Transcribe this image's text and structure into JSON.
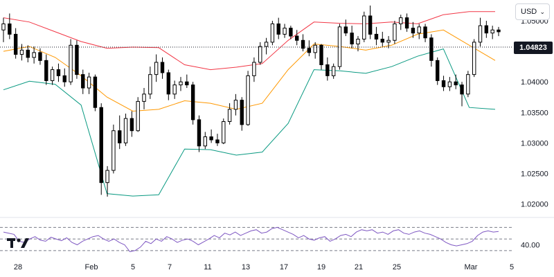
{
  "currency_selector": {
    "label": "USD",
    "chevron": "chevron-down-icon"
  },
  "last_price_label": "1.04823",
  "logo": {
    "icon": "tradingview-logo-icon"
  },
  "colors": {
    "upper_band": "#f23645",
    "middle_band": "#ff9800",
    "lower_band": "#089981",
    "rsi": "#7e57c2",
    "candle": "#000000"
  },
  "chart_data": [
    {
      "type": "candlestick",
      "y_axis_ticks": [
        "1.05000",
        "1.04500",
        "1.04000",
        "1.03500",
        "1.03000",
        "1.02500",
        "1.02000"
      ],
      "y_axis_tick_values": [
        1.05,
        1.045,
        1.04,
        1.035,
        1.03,
        1.025,
        1.02
      ],
      "ylim": [
        1.0187,
        1.0525
      ],
      "last_price": 1.04823,
      "x_axis_ticks": [
        "28",
        "Feb",
        "5",
        "7",
        "11",
        "13",
        "17",
        "19",
        "21",
        "25",
        "Mar",
        "5"
      ],
      "bands": {
        "upper": [
          1.0505,
          1.0498,
          1.0482,
          1.0466,
          1.0455,
          1.0457,
          1.0456,
          1.0428,
          1.042,
          1.0424,
          1.043,
          1.0468,
          1.0498,
          1.0496,
          1.0495,
          1.0498,
          1.0495,
          1.051,
          1.0515,
          1.0515
        ],
        "middle": [
          1.045,
          1.0458,
          1.044,
          1.041,
          1.0375,
          1.0352,
          1.0355,
          1.0369,
          1.0365,
          1.0355,
          1.0365,
          1.042,
          1.0462,
          1.0458,
          1.0452,
          1.046,
          1.0478,
          1.0485,
          1.046,
          1.0435
        ],
        "lower": [
          1.0387,
          1.0401,
          1.0396,
          1.0362,
          1.0217,
          1.0213,
          1.0215,
          1.029,
          1.0289,
          1.028,
          1.0285,
          1.0332,
          1.042,
          1.0418,
          1.0414,
          1.0425,
          1.0442,
          1.0454,
          1.0358,
          1.0355
        ]
      },
      "candles": [
        [
          1.0485,
          1.0505,
          1.0465,
          1.0495
        ],
        [
          1.0495,
          1.0512,
          1.047,
          1.0478
        ],
        [
          1.0478,
          1.0488,
          1.0438,
          1.0445
        ],
        [
          1.0445,
          1.0462,
          1.0435,
          1.0452
        ],
        [
          1.0452,
          1.046,
          1.0432,
          1.044
        ],
        [
          1.044,
          1.0458,
          1.043,
          1.0448
        ],
        [
          1.0448,
          1.0455,
          1.0428,
          1.0435
        ],
        [
          1.0435,
          1.0445,
          1.0395,
          1.0402
        ],
        [
          1.0402,
          1.0425,
          1.0395,
          1.042
        ],
        [
          1.042,
          1.043,
          1.04,
          1.041
        ],
        [
          1.041,
          1.0422,
          1.0392,
          1.04
        ],
        [
          1.04,
          1.047,
          1.0395,
          1.046
        ],
        [
          1.046,
          1.0468,
          1.0405,
          1.0412
        ],
        [
          1.0412,
          1.042,
          1.038,
          1.039
        ],
        [
          1.039,
          1.0415,
          1.038,
          1.0408
        ],
        [
          1.0408,
          1.0412,
          1.0352,
          1.0358
        ],
        [
          1.0358,
          1.0365,
          1.0215,
          1.0235
        ],
        [
          1.0235,
          1.0262,
          1.0212,
          1.0255
        ],
        [
          1.0255,
          1.033,
          1.025,
          1.032
        ],
        [
          1.032,
          1.0345,
          1.029,
          1.03
        ],
        [
          1.03,
          1.0348,
          1.0295,
          1.034
        ],
        [
          1.034,
          1.0352,
          1.031,
          1.032
        ],
        [
          1.032,
          1.0375,
          1.0318,
          1.0368
        ],
        [
          1.0368,
          1.039,
          1.0355,
          1.038
        ],
        [
          1.038,
          1.0425,
          1.0372,
          1.0412
        ],
        [
          1.0412,
          1.0445,
          1.04,
          1.0432
        ],
        [
          1.0432,
          1.044,
          1.0405,
          1.0415
        ],
        [
          1.0415,
          1.042,
          1.037,
          1.038
        ],
        [
          1.038,
          1.0402,
          1.0372,
          1.0395
        ],
        [
          1.0395,
          1.0408,
          1.0385,
          1.04
        ],
        [
          1.04,
          1.0412,
          1.039,
          1.0395
        ],
        [
          1.0395,
          1.04,
          1.033,
          1.0338
        ],
        [
          1.0338,
          1.0345,
          1.0285,
          1.0295
        ],
        [
          1.0295,
          1.0318,
          1.029,
          1.031
        ],
        [
          1.031,
          1.0322,
          1.03,
          1.0305
        ],
        [
          1.0305,
          1.0315,
          1.0295,
          1.03
        ],
        [
          1.03,
          1.034,
          1.0298,
          1.0335
        ],
        [
          1.0335,
          1.0365,
          1.033,
          1.0355
        ],
        [
          1.0355,
          1.038,
          1.0345,
          1.037
        ],
        [
          1.037,
          1.0375,
          1.032,
          1.033
        ],
        [
          1.033,
          1.0418,
          1.0328,
          1.041
        ],
        [
          1.041,
          1.044,
          1.04,
          1.0432
        ],
        [
          1.0432,
          1.0465,
          1.0428,
          1.0458
        ],
        [
          1.0458,
          1.0472,
          1.0445,
          1.0465
        ],
        [
          1.0465,
          1.05,
          1.046,
          1.0495
        ],
        [
          1.0495,
          1.0505,
          1.047,
          1.0478
        ],
        [
          1.0478,
          1.0495,
          1.0472,
          1.0488
        ],
        [
          1.0488,
          1.0492,
          1.047,
          1.0475
        ],
        [
          1.0475,
          1.0485,
          1.046,
          1.0468
        ],
        [
          1.0468,
          1.0478,
          1.045,
          1.0455
        ],
        [
          1.0455,
          1.0468,
          1.0442,
          1.0448
        ],
        [
          1.0448,
          1.0465,
          1.0438,
          1.046
        ],
        [
          1.046,
          1.0462,
          1.042,
          1.0428
        ],
        [
          1.0428,
          1.044,
          1.0402,
          1.041
        ],
        [
          1.041,
          1.043,
          1.0405,
          1.0425
        ],
        [
          1.0425,
          1.0495,
          1.042,
          1.049
        ],
        [
          1.049,
          1.0502,
          1.0475,
          1.048
        ],
        [
          1.048,
          1.0492,
          1.0455,
          1.0462
        ],
        [
          1.0462,
          1.0475,
          1.045,
          1.047
        ],
        [
          1.047,
          1.0515,
          1.0465,
          1.0508
        ],
        [
          1.0508,
          1.0525,
          1.047,
          1.0478
        ],
        [
          1.0478,
          1.049,
          1.046,
          1.047
        ],
        [
          1.047,
          1.0482,
          1.0458,
          1.0465
        ],
        [
          1.0465,
          1.0475,
          1.0455,
          1.0468
        ],
        [
          1.0468,
          1.05,
          1.0462,
          1.0495
        ],
        [
          1.0495,
          1.051,
          1.0485,
          1.0505
        ],
        [
          1.0505,
          1.0512,
          1.0482,
          1.0488
        ],
        [
          1.0488,
          1.0498,
          1.0472,
          1.048
        ],
        [
          1.048,
          1.0495,
          1.047,
          1.049
        ],
        [
          1.049,
          1.0495,
          1.0465,
          1.0472
        ],
        [
          1.0472,
          1.0478,
          1.0425,
          1.0435
        ],
        [
          1.0435,
          1.044,
          1.0395,
          1.0402
        ],
        [
          1.0402,
          1.041,
          1.0385,
          1.0392
        ],
        [
          1.0392,
          1.0408,
          1.0385,
          1.04
        ],
        [
          1.04,
          1.0412,
          1.0388,
          1.0395
        ],
        [
          1.0395,
          1.04,
          1.036,
          1.038
        ],
        [
          1.038,
          1.0418,
          1.0375,
          1.0412
        ],
        [
          1.0412,
          1.047,
          1.0408,
          1.0465
        ],
        [
          1.0465,
          1.0505,
          1.0458,
          1.0492
        ],
        [
          1.0492,
          1.05,
          1.0472,
          1.048
        ],
        [
          1.048,
          1.0492,
          1.047,
          1.0485
        ],
        [
          1.0485,
          1.049,
          1.0475,
          1.0482
        ]
      ]
    },
    {
      "type": "line",
      "name": "RSI",
      "y_axis_ticks": [
        "40.00"
      ],
      "y_axis_tick_values": [
        40
      ],
      "ylim": [
        25,
        80
      ],
      "levels": [
        70,
        50,
        30
      ],
      "values": [
        62,
        60,
        58,
        46,
        44,
        50,
        54,
        48,
        46,
        53,
        50,
        47,
        52,
        44,
        40,
        46,
        50,
        54,
        56,
        50,
        46,
        50,
        44,
        40,
        28,
        30,
        36,
        46,
        42,
        50,
        46,
        54,
        50,
        44,
        48,
        50,
        46,
        40,
        45,
        50,
        56,
        52,
        60,
        57,
        62,
        56,
        60,
        64,
        66,
        60,
        62,
        68,
        70,
        66,
        62,
        58,
        52,
        56,
        50,
        48,
        52,
        54,
        46,
        50,
        56,
        58,
        54,
        62,
        66,
        64,
        66,
        60,
        62,
        58,
        64,
        66,
        60,
        58,
        62,
        64,
        60,
        58,
        54,
        50,
        44,
        40,
        38,
        40,
        42,
        46,
        56,
        62,
        64,
        62,
        63
      ]
    }
  ]
}
